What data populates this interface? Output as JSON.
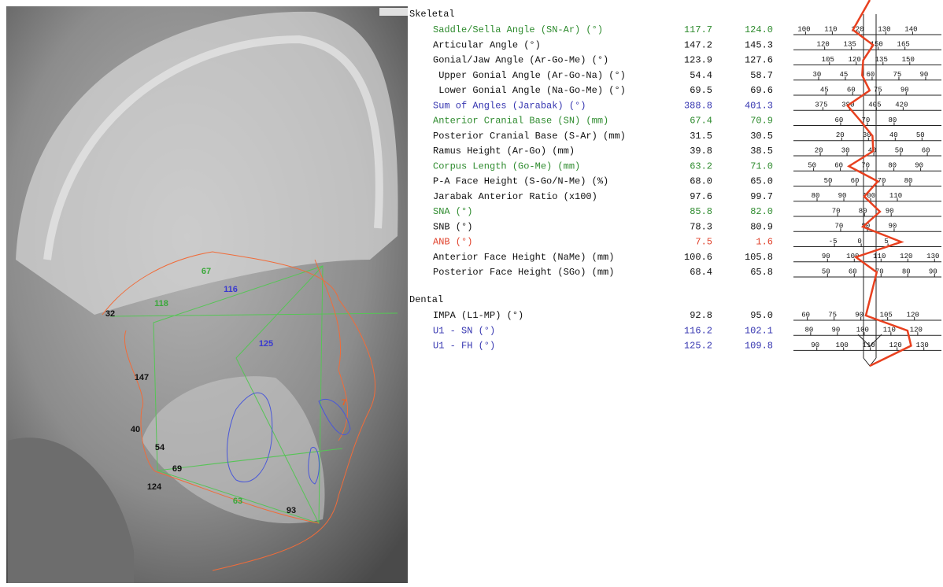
{
  "xray": {
    "labels": [
      {
        "text": "67",
        "color": "#3aa83a"
      },
      {
        "text": "116",
        "color": "#3a3ad0"
      },
      {
        "text": "118",
        "color": "#3aa83a"
      },
      {
        "text": "32",
        "color": "#111111"
      },
      {
        "text": "125",
        "color": "#3a3ad0"
      },
      {
        "text": "147",
        "color": "#111111"
      },
      {
        "text": "7",
        "color": "#f06020"
      },
      {
        "text": "40",
        "color": "#111111"
      },
      {
        "text": "54",
        "color": "#111111"
      },
      {
        "text": "69",
        "color": "#111111"
      },
      {
        "text": "124",
        "color": "#111111"
      },
      {
        "text": "63",
        "color": "#3aa83a"
      },
      {
        "text": "93",
        "color": "#111111"
      }
    ]
  },
  "panel": {
    "sections": [
      {
        "title": "Skeletal",
        "rows": [
          {
            "name": "Saddle/Sella Angle (SN-Ar) (°)",
            "value": 117.7,
            "norm": 124.0,
            "norm_label": "124.0",
            "color": "#2e8b2e",
            "ticks": [
              100,
              110,
              120,
              130,
              140
            ]
          },
          {
            "name": "Articular Angle (°)",
            "value": 147.2,
            "norm": 145.3,
            "color": "#111111",
            "ticks": [
              120,
              135,
              150,
              165
            ]
          },
          {
            "name": "Gonial/Jaw Angle (Ar-Go-Me) (°)",
            "value": 123.9,
            "norm": 127.6,
            "color": "#111111",
            "ticks": [
              105,
              120,
              135,
              150
            ]
          },
          {
            "name": " Upper Gonial Angle (Ar-Go-Na) (°)",
            "value": 54.4,
            "norm": 58.7,
            "color": "#111111",
            "ticks": [
              30,
              45,
              60,
              75,
              90
            ]
          },
          {
            "name": " Lower Gonial Angle (Na-Go-Me) (°)",
            "value": 69.5,
            "norm": 69.6,
            "color": "#111111",
            "ticks": [
              45,
              60,
              75,
              90
            ]
          },
          {
            "name": "Sum of Angles (Jarabak) (°)",
            "value": 388.8,
            "norm": 401.3,
            "color": "#3535b0",
            "ticks": [
              375,
              390,
              405,
              420
            ]
          },
          {
            "name": "Anterior Cranial Base (SN) (mm)",
            "value": 67.4,
            "norm": 70.9,
            "color": "#2e8b2e",
            "ticks": [
              60,
              70,
              80
            ]
          },
          {
            "name": "Posterior Cranial Base (S-Ar) (mm)",
            "value": 31.5,
            "norm": 30.5,
            "color": "#111111",
            "ticks": [
              20,
              30,
              40,
              50
            ]
          },
          {
            "name": "Ramus Height (Ar-Go) (mm)",
            "value": 39.8,
            "norm": 38.5,
            "color": "#111111",
            "ticks": [
              20,
              30,
              40,
              50,
              60
            ]
          },
          {
            "name": "Corpus Length (Go-Me) (mm)",
            "value": 63.2,
            "norm": 71.0,
            "norm_label": "71.0",
            "color": "#2e8b2e",
            "ticks": [
              50,
              60,
              70,
              80,
              90
            ]
          },
          {
            "name": "P-A Face Height (S-Go/N-Me) (%)",
            "value": 68.0,
            "value_label": "68.0",
            "norm": 65.0,
            "norm_label": "65.0",
            "color": "#111111",
            "ticks": [
              50,
              60,
              70,
              80
            ]
          },
          {
            "name": "Jarabak Anterior Ratio (x100)",
            "value": 97.6,
            "norm": 99.7,
            "color": "#111111",
            "ticks": [
              80,
              90,
              100,
              110
            ]
          },
          {
            "name": "SNA (°)",
            "value": 85.8,
            "norm": 82.0,
            "norm_label": "82.0",
            "color": "#2e8b2e",
            "ticks": [
              70,
              80,
              90
            ]
          },
          {
            "name": "SNB (°)",
            "value": 78.3,
            "norm": 80.9,
            "color": "#111111",
            "ticks": [
              70,
              80,
              90
            ]
          },
          {
            "name": "ANB (°)",
            "value": 7.5,
            "norm": 1.6,
            "color": "#e0402a",
            "ticks": [
              -5,
              0,
              5
            ]
          },
          {
            "name": "Anterior Face Height (NaMe) (mm)",
            "value": 100.6,
            "norm": 105.8,
            "color": "#111111",
            "ticks": [
              90,
              100,
              110,
              120,
              130
            ]
          },
          {
            "name": "Posterior Face Height (SGo) (mm)",
            "value": 68.4,
            "norm": 65.8,
            "color": "#111111",
            "ticks": [
              50,
              60,
              70,
              80,
              90
            ]
          }
        ]
      },
      {
        "title": "Dental",
        "rows": [
          {
            "name": "IMPA (L1-MP) (°)",
            "value": 92.8,
            "norm": 95.0,
            "norm_label": "95.0",
            "color": "#111111",
            "ticks": [
              60,
              75,
              90,
              105,
              120
            ]
          },
          {
            "name": "U1 - SN (°)",
            "value": 116.2,
            "norm": 102.1,
            "color": "#3535b0",
            "ticks": [
              80,
              90,
              100,
              110,
              120
            ]
          },
          {
            "name": "U1 - FH (°)",
            "value": 125.2,
            "norm": 109.8,
            "color": "#3535b0",
            "ticks": [
              90,
              100,
              110,
              120,
              130
            ]
          }
        ]
      }
    ]
  }
}
